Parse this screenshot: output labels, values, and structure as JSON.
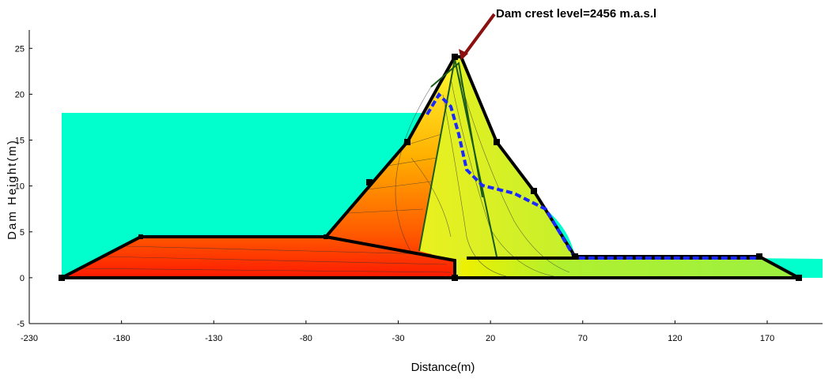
{
  "chart_data": {
    "type": "section",
    "annotation": "Dam crest level=2456 m.a.s.l",
    "x_label": "Distance(m)",
    "y_label": "Dam Height(m)",
    "xlim": [
      -230,
      200
    ],
    "ylim": [
      -5,
      27
    ],
    "xticks": [
      -230,
      -180,
      -130,
      -80,
      -30,
      20,
      70,
      120,
      170
    ],
    "yticks": [
      -5,
      0,
      5,
      10,
      15,
      20,
      25
    ]
  }
}
